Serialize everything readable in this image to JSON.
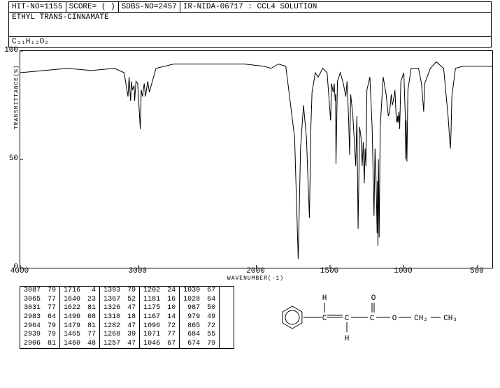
{
  "header": {
    "hit_no": "HIT-NO=1155",
    "score": "SCORE=  (  )",
    "sdbs_no": "SDBS-NO=2457",
    "ir_info": "IR-NIDA-06717 : CCL4 SOLUTION"
  },
  "title": "ETHYL TRANS-CINNAMATE",
  "formula": "C₁₁H₁₂O₂",
  "chart": {
    "type": "line",
    "xlim": [
      4000,
      400
    ],
    "ylim": [
      0,
      100
    ],
    "x_ticks": [
      4000,
      3000,
      2000,
      1500,
      1000,
      500
    ],
    "y_ticks": [
      0,
      50,
      100
    ],
    "x_label": "WAVENUMBER(-1)",
    "y_label": "TRANSMITTANCE(%)",
    "line_color": "#000000",
    "background_color": "#ffffff",
    "points": [
      [
        4000,
        90
      ],
      [
        3800,
        91
      ],
      [
        3600,
        92
      ],
      [
        3400,
        91
      ],
      [
        3200,
        92
      ],
      [
        3120,
        90
      ],
      [
        3087,
        79
      ],
      [
        3078,
        88
      ],
      [
        3065,
        77
      ],
      [
        3058,
        86
      ],
      [
        3050,
        82
      ],
      [
        3035,
        84
      ],
      [
        3031,
        77
      ],
      [
        3020,
        86
      ],
      [
        3005,
        85
      ],
      [
        2983,
        64
      ],
      [
        2975,
        82
      ],
      [
        2964,
        79
      ],
      [
        2950,
        85
      ],
      [
        2939,
        79
      ],
      [
        2920,
        86
      ],
      [
        2906,
        81
      ],
      [
        2850,
        92
      ],
      [
        2700,
        94
      ],
      [
        2500,
        94
      ],
      [
        2300,
        94
      ],
      [
        2100,
        94
      ],
      [
        1950,
        93
      ],
      [
        1900,
        92
      ],
      [
        1850,
        94
      ],
      [
        1800,
        93
      ],
      [
        1740,
        60
      ],
      [
        1716,
        4
      ],
      [
        1700,
        55
      ],
      [
        1680,
        75
      ],
      [
        1660,
        60
      ],
      [
        1640,
        23
      ],
      [
        1630,
        65
      ],
      [
        1622,
        81
      ],
      [
        1600,
        90
      ],
      [
        1580,
        88
      ],
      [
        1550,
        92
      ],
      [
        1520,
        90
      ],
      [
        1496,
        68
      ],
      [
        1490,
        85
      ],
      [
        1479,
        81
      ],
      [
        1472,
        85
      ],
      [
        1465,
        77
      ],
      [
        1462,
        80
      ],
      [
        1460,
        48
      ],
      [
        1450,
        86
      ],
      [
        1430,
        90
      ],
      [
        1410,
        85
      ],
      [
        1393,
        79
      ],
      [
        1385,
        86
      ],
      [
        1375,
        70
      ],
      [
        1367,
        52
      ],
      [
        1360,
        80
      ],
      [
        1345,
        70
      ],
      [
        1326,
        47
      ],
      [
        1318,
        70
      ],
      [
        1310,
        18
      ],
      [
        1300,
        65
      ],
      [
        1290,
        60
      ],
      [
        1282,
        47
      ],
      [
        1275,
        58
      ],
      [
        1268,
        39
      ],
      [
        1262,
        55
      ],
      [
        1257,
        47
      ],
      [
        1250,
        82
      ],
      [
        1230,
        88
      ],
      [
        1215,
        65
      ],
      [
        1202,
        24
      ],
      [
        1195,
        55
      ],
      [
        1188,
        40
      ],
      [
        1181,
        16
      ],
      [
        1178,
        40
      ],
      [
        1175,
        10
      ],
      [
        1172,
        50
      ],
      [
        1167,
        14
      ],
      [
        1160,
        65
      ],
      [
        1140,
        88
      ],
      [
        1120,
        80
      ],
      [
        1105,
        70
      ],
      [
        1096,
        72
      ],
      [
        1085,
        80
      ],
      [
        1078,
        75
      ],
      [
        1071,
        77
      ],
      [
        1060,
        82
      ],
      [
        1052,
        70
      ],
      [
        1046,
        67
      ],
      [
        1042,
        70
      ],
      [
        1039,
        67
      ],
      [
        1033,
        72
      ],
      [
        1028,
        64
      ],
      [
        1020,
        86
      ],
      [
        1000,
        90
      ],
      [
        990,
        70
      ],
      [
        987,
        50
      ],
      [
        984,
        68
      ],
      [
        979,
        49
      ],
      [
        972,
        82
      ],
      [
        950,
        92
      ],
      [
        900,
        92
      ],
      [
        880,
        85
      ],
      [
        872,
        78
      ],
      [
        865,
        72
      ],
      [
        858,
        85
      ],
      [
        820,
        92
      ],
      [
        780,
        95
      ],
      [
        730,
        92
      ],
      [
        700,
        70
      ],
      [
        692,
        62
      ],
      [
        684,
        55
      ],
      [
        680,
        62
      ],
      [
        674,
        79
      ],
      [
        650,
        92
      ],
      [
        600,
        93
      ],
      [
        550,
        93
      ],
      [
        500,
        93
      ],
      [
        450,
        93
      ],
      [
        400,
        93
      ]
    ]
  },
  "peaks": {
    "cols": 6,
    "rows": 7,
    "data": [
      [
        3087,
        79,
        1716,
        4,
        1393,
        79,
        1202,
        24,
        1039,
        67,
        null,
        null
      ],
      [
        3065,
        77,
        1640,
        23,
        1367,
        52,
        1181,
        16,
        1028,
        64,
        null,
        null
      ],
      [
        3031,
        77,
        1622,
        81,
        1326,
        47,
        1175,
        10,
        987,
        50,
        null,
        null
      ],
      [
        2983,
        64,
        1496,
        68,
        1310,
        18,
        1167,
        14,
        979,
        49,
        null,
        null
      ],
      [
        2964,
        79,
        1479,
        81,
        1282,
        47,
        1096,
        72,
        865,
        72,
        null,
        null
      ],
      [
        2939,
        79,
        1465,
        77,
        1268,
        39,
        1071,
        77,
        684,
        55,
        null,
        null
      ],
      [
        2906,
        81,
        1460,
        48,
        1257,
        47,
        1046,
        67,
        674,
        79,
        null,
        null
      ]
    ]
  },
  "structure": {
    "labels": {
      "H1": "H",
      "H2": "H",
      "O1": "O",
      "O2": "O",
      "CH2": "CH₂",
      "CH3": "CH₃"
    }
  }
}
